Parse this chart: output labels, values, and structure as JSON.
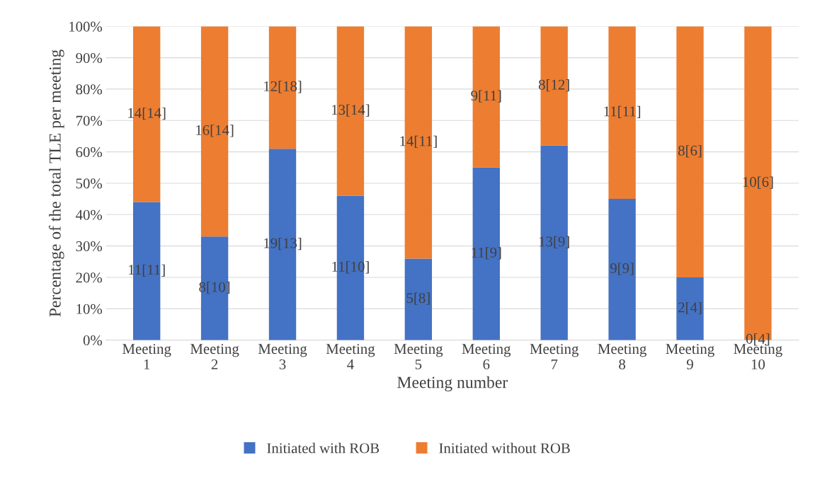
{
  "chart_data": {
    "type": "bar",
    "stacked": true,
    "xlabel": "Meeting number",
    "ylabel": "Percentage of the total TLE per meeting",
    "categories": [
      "Meeting 1",
      "Meeting 2",
      "Meeting 3",
      "Meeting 4",
      "Meeting 5",
      "Meeting 6",
      "Meeting 7",
      "Meeting 8",
      "Meeting 9",
      "Meeting 10"
    ],
    "series": [
      {
        "name": "Initiated with ROB",
        "color": "#4472c4",
        "values": [
          44,
          33,
          61,
          46,
          26,
          55,
          62,
          45,
          20,
          0
        ]
      },
      {
        "name": "Initiated without ROB",
        "color": "#ed7d31",
        "values": [
          56,
          67,
          39,
          54,
          74,
          45,
          38,
          55,
          80,
          100
        ]
      }
    ],
    "annotations": [
      "11[11]",
      "8[10]",
      "19[13]",
      "11[10]",
      "5[8]",
      "11[9]",
      "13[9]",
      "9[9]",
      "2[4]",
      "0[4]",
      "14[14]",
      "16[14]",
      "12[18]",
      "13[14]",
      "14[11]",
      "9[11]",
      "8[12]",
      "11[11]",
      "8[6]",
      "10[6]"
    ],
    "ylim": [
      0,
      100
    ],
    "yticks": [
      {
        "value": 0,
        "label": "0%"
      },
      {
        "value": 10,
        "label": "10%"
      },
      {
        "value": 20,
        "label": "20%"
      },
      {
        "value": 30,
        "label": "30%"
      },
      {
        "value": 40,
        "label": "40%"
      },
      {
        "value": 50,
        "label": "50%"
      },
      {
        "value": 60,
        "label": "60%"
      },
      {
        "value": 70,
        "label": "70%"
      },
      {
        "value": 80,
        "label": "80%"
      },
      {
        "value": 90,
        "label": "90%"
      },
      {
        "value": 100,
        "label": "100%"
      }
    ],
    "grid": "y",
    "legend": "bottom"
  }
}
